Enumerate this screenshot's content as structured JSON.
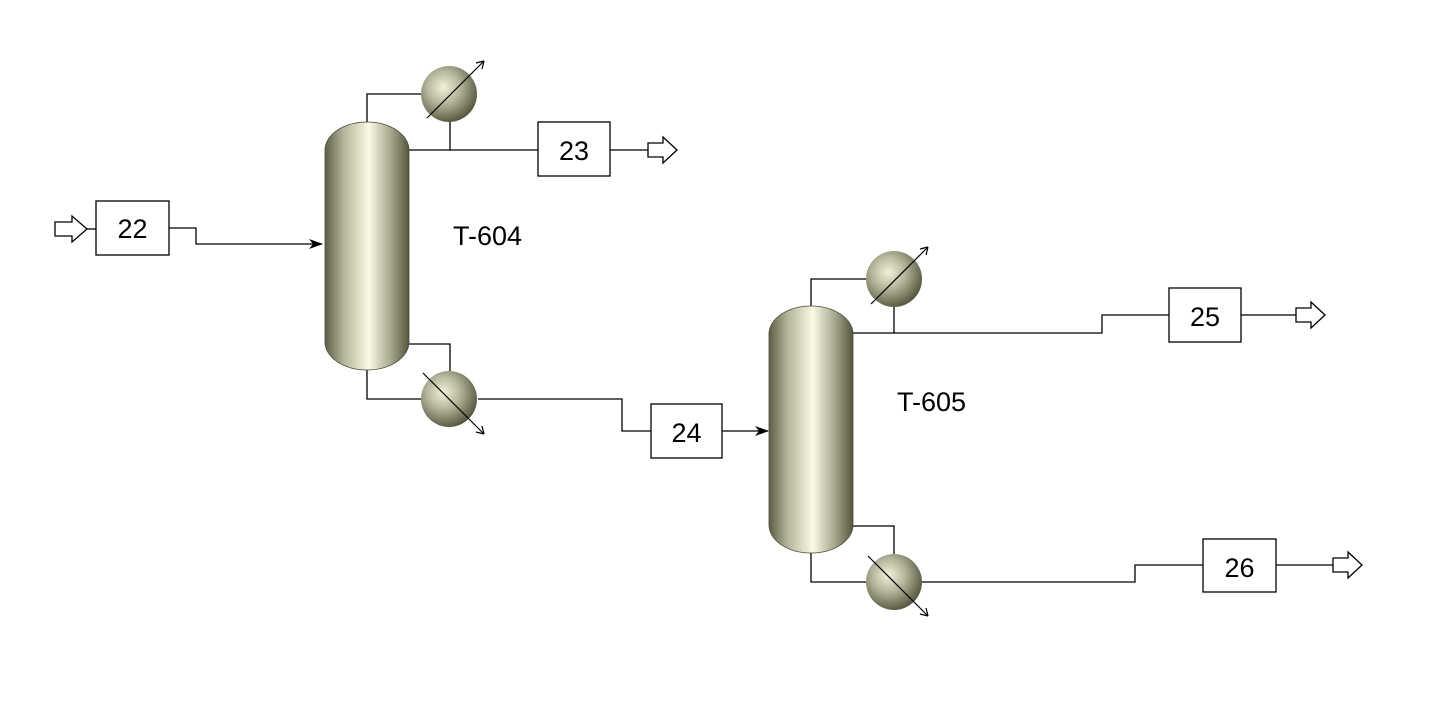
{
  "diagram": {
    "columns": [
      {
        "id": "T-604",
        "label": "T-604"
      },
      {
        "id": "T-605",
        "label": "T-605"
      }
    ],
    "streams": [
      {
        "id": "22",
        "label": "22"
      },
      {
        "id": "23",
        "label": "23"
      },
      {
        "id": "24",
        "label": "24"
      },
      {
        "id": "25",
        "label": "25"
      },
      {
        "id": "26",
        "label": "26"
      }
    ],
    "colors": {
      "vessel_dark": "#5e5e48",
      "vessel_light": "#fafae6",
      "line": "#000000",
      "background": "#ffffff"
    }
  }
}
